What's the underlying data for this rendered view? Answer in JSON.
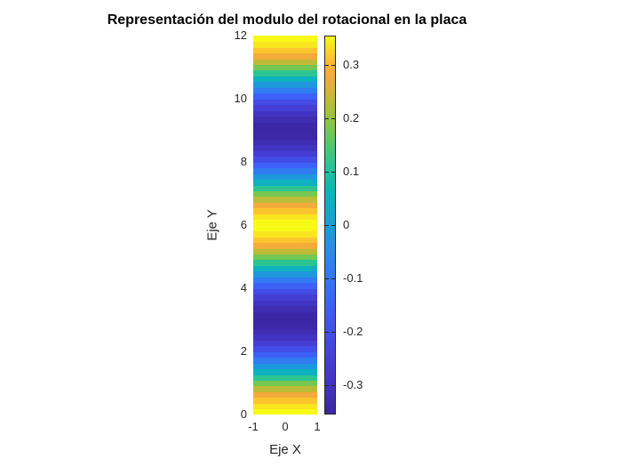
{
  "chart_data": {
    "type": "heatmap",
    "title": "Representación del modulo del rotacional en la placa",
    "xlabel": "Eje X",
    "ylabel": "Eje Y",
    "x_range": [
      -1,
      1
    ],
    "y_range": [
      0,
      12
    ],
    "n_bands": 66,
    "orientation": "horizontal bands, value depends only on y",
    "formula": "v(y) = 0.355 * cos(2*pi*y / 6)",
    "amplitude": 0.355,
    "period": 6,
    "clim": [
      -0.355,
      0.355
    ],
    "profile_y": [
      0,
      1,
      2,
      3,
      4,
      5,
      6,
      7,
      8,
      9,
      10,
      11,
      12
    ],
    "profile_v": [
      0.355,
      0.178,
      -0.178,
      -0.355,
      -0.178,
      0.178,
      0.355,
      0.178,
      -0.178,
      -0.355,
      -0.178,
      0.178,
      0.355
    ],
    "x_tick_values": [
      -1,
      0,
      1
    ],
    "x_tick_labels": [
      "-1",
      "0",
      "1"
    ],
    "y_tick_values": [
      0,
      2,
      4,
      6,
      8,
      10,
      12
    ],
    "y_tick_labels": [
      "0",
      "2",
      "4",
      "6",
      "8",
      "10",
      "12"
    ],
    "colorbar_tick_values": [
      0.3,
      0.2,
      0.1,
      0,
      -0.1,
      -0.2,
      -0.3
    ],
    "colorbar_tick_labels": [
      "0.3",
      "0.2",
      "0.1",
      "0",
      "-0.1",
      "-0.2",
      "-0.3"
    ],
    "colormap": "parula",
    "colormap_anchors": [
      [
        0.0,
        "#3b26a3"
      ],
      [
        0.05,
        "#4030b8"
      ],
      [
        0.1,
        "#4437c9"
      ],
      [
        0.15,
        "#4540d8"
      ],
      [
        0.2,
        "#444ae5"
      ],
      [
        0.25,
        "#4156f0"
      ],
      [
        0.3,
        "#3c63f8"
      ],
      [
        0.35,
        "#3572f4"
      ],
      [
        0.4,
        "#2e81ef"
      ],
      [
        0.45,
        "#2790e5"
      ],
      [
        0.5,
        "#16a0d5"
      ],
      [
        0.55,
        "#0eadc6"
      ],
      [
        0.6,
        "#0cb9b2"
      ],
      [
        0.65,
        "#23c49c"
      ],
      [
        0.7,
        "#45c877"
      ],
      [
        0.75,
        "#76c751"
      ],
      [
        0.8,
        "#a5c13b"
      ],
      [
        0.845,
        "#ccb834"
      ],
      [
        0.89,
        "#f2aa3b"
      ],
      [
        0.925,
        "#fcb434"
      ],
      [
        0.96,
        "#fad22a"
      ],
      [
        1.0,
        "#f8fb14"
      ]
    ],
    "background_color": "#ffffff",
    "text_color": "#262626",
    "grid": false,
    "legend": false
  }
}
